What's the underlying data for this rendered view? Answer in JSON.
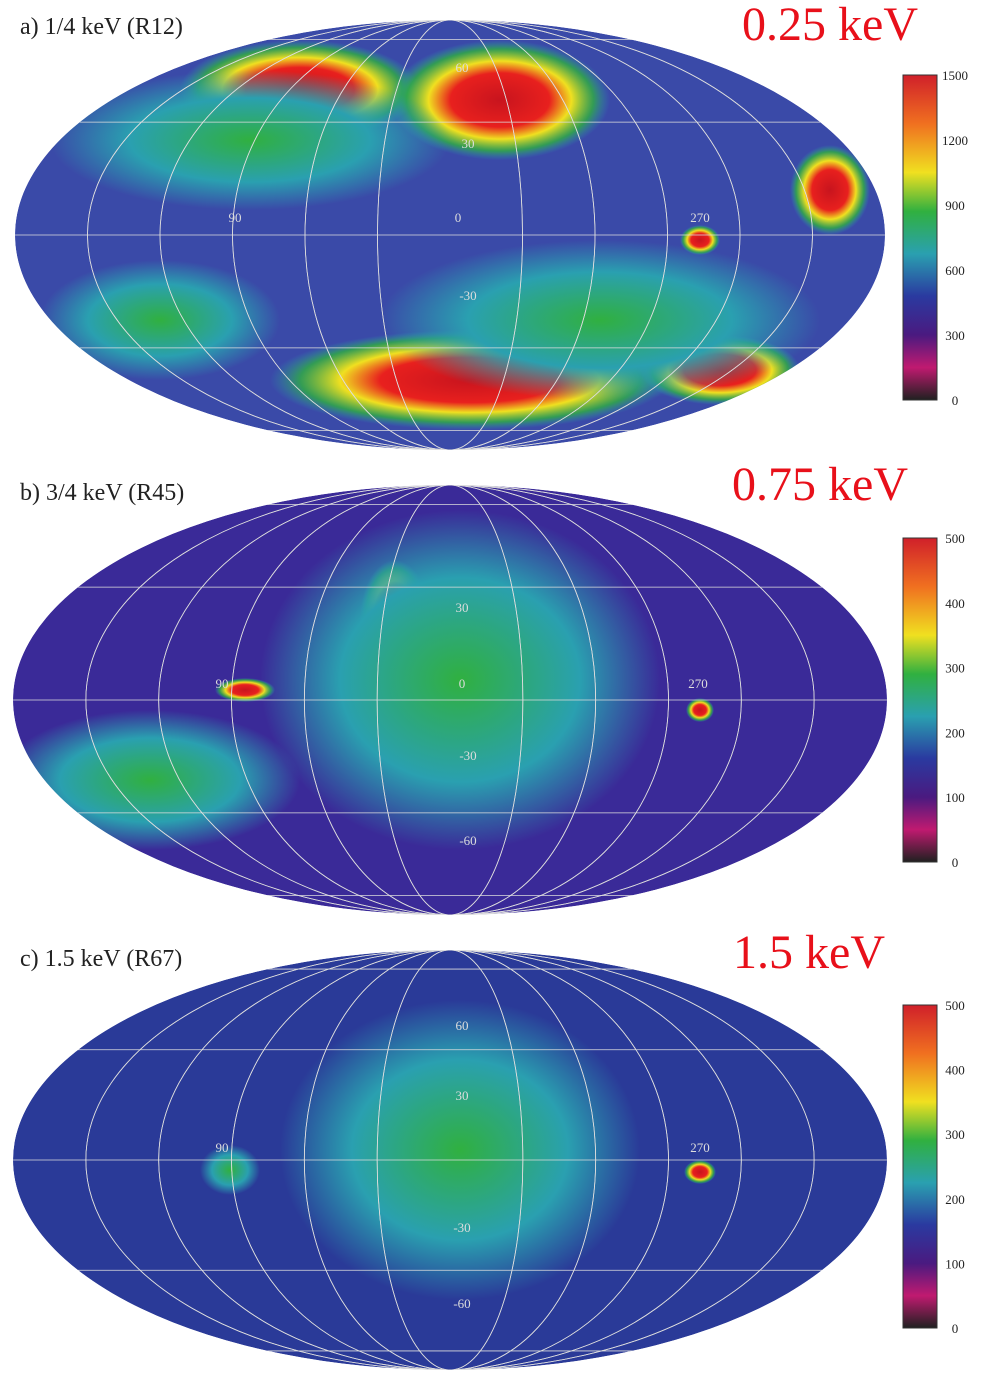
{
  "panels": [
    {
      "label": "a) 1/4 keV (R12)",
      "energy": "0.25 keV",
      "colorbar_ticks": [
        "1500",
        "1200",
        "900",
        "600",
        "300",
        "0"
      ],
      "grid_labels": [
        "60",
        "30",
        "90",
        "0",
        "270",
        "-30"
      ]
    },
    {
      "label": "b) 3/4 keV (R45)",
      "energy": "0.75 keV",
      "colorbar_ticks": [
        "500",
        "400",
        "300",
        "200",
        "100",
        "0"
      ],
      "grid_labels": [
        "30",
        "90",
        "0",
        "270",
        "-30",
        "-60"
      ]
    },
    {
      "label": "c) 1.5 keV (R67)",
      "energy": "1.5 keV",
      "colorbar_ticks": [
        "500",
        "400",
        "300",
        "200",
        "100",
        "0"
      ],
      "grid_labels": [
        "60",
        "30",
        "90",
        "270",
        "-30",
        "-60"
      ]
    }
  ]
}
